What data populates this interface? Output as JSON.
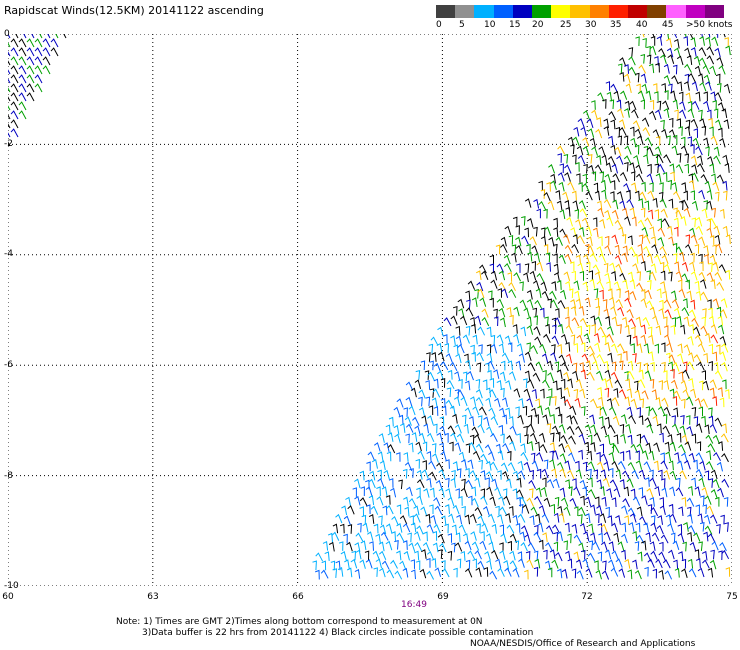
{
  "title": "Rapidscat Winds(12.5KM) 20141122 ascending",
  "colorbar": {
    "labels": [
      "0",
      "5",
      "10",
      "15",
      "20",
      "25",
      "30",
      "35",
      "40",
      "45",
      ">50 knots"
    ],
    "colors": [
      "#404040",
      "#909090",
      "#00b0ff",
      "#0060ff",
      "#0000c0",
      "#00a000",
      "#ffff00",
      "#ffc000",
      "#ff8000",
      "#ff2000",
      "#c00000",
      "#804000",
      "#ff60ff",
      "#c000c0",
      "#800080"
    ]
  },
  "axes": {
    "x_ticks": [
      "60",
      "63",
      "66",
      "69",
      "72",
      "75"
    ],
    "y_ticks": [
      "0",
      "-2",
      "-4",
      "-6",
      "-8",
      "-10"
    ]
  },
  "time_label": "16:49",
  "notes": {
    "line1": "Note: 1) Times are GMT 2)Times along bottom correspond to measurement at 0N",
    "line2": "3)Data buffer is 22 hrs from 20141122 4) Black circles indicate possible contamination",
    "line3": "NOAA/NESDIS/Office of Research and Applications"
  }
}
